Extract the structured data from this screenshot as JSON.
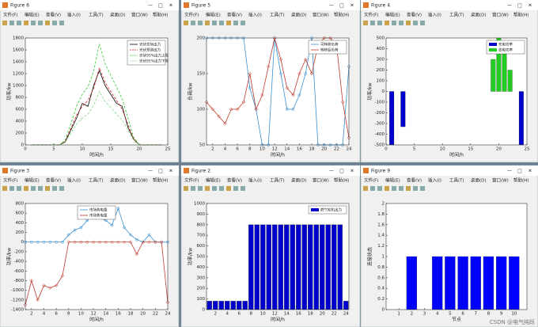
{
  "windows": [
    {
      "title": "Figure 6"
    },
    {
      "title": "Figure 5"
    },
    {
      "title": "Figure 4"
    },
    {
      "title": "Figure 3"
    },
    {
      "title": "Figure 2"
    },
    {
      "title": "Figure 9"
    }
  ],
  "menu": [
    "文件(F)",
    "编辑(E)",
    "查看(V)",
    "插入(I)",
    "工具(T)",
    "桌面(D)",
    "窗口(W)",
    "帮助(H)"
  ],
  "watermark": "CSDN @电气纯跃",
  "chart_data": [
    {
      "type": "line",
      "xlabel": "时间/h",
      "ylabel": "功率/kw",
      "xlim": [
        0,
        25
      ],
      "xticks": [
        0,
        5,
        10,
        15,
        20,
        25
      ],
      "ylim": [
        0,
        1800
      ],
      "yticks": [
        0,
        200,
        400,
        600,
        800,
        1000,
        1200,
        1400,
        1600,
        1800
      ],
      "legend": "top-right",
      "x": [
        1,
        2,
        3,
        4,
        5,
        6,
        7,
        8,
        9,
        10,
        11,
        12,
        13,
        14,
        15,
        16,
        17,
        18,
        19,
        20,
        21,
        22,
        23,
        24
      ],
      "series": [
        {
          "name": "光伏实际出力",
          "color": "#000000",
          "line_style": "solid",
          "values": [
            0,
            0,
            0,
            0,
            0,
            0,
            50,
            250,
            450,
            700,
            650,
            1000,
            1250,
            1000,
            850,
            700,
            650,
            300,
            100,
            0,
            0,
            0,
            0,
            0
          ]
        },
        {
          "name": "光伏预测出力",
          "color": "#d62020",
          "line_style": "dashed",
          "values": [
            0,
            0,
            0,
            0,
            0,
            0,
            60,
            280,
            500,
            650,
            750,
            950,
            1300,
            1050,
            900,
            750,
            600,
            350,
            100,
            0,
            0,
            0,
            0,
            0
          ]
        },
        {
          "name": "光伏95%出力上限",
          "color": "#2ecc2e",
          "line_style": "dashed",
          "values": [
            0,
            0,
            0,
            0,
            0,
            0,
            80,
            360,
            650,
            850,
            980,
            1240,
            1700,
            1370,
            1170,
            980,
            780,
            460,
            130,
            0,
            0,
            0,
            0,
            0
          ]
        },
        {
          "name": "光伏95%出力下限",
          "color": "#7fd67f",
          "line_style": "dashed",
          "values": [
            0,
            0,
            0,
            0,
            0,
            0,
            40,
            200,
            350,
            450,
            520,
            660,
            900,
            730,
            630,
            520,
            420,
            250,
            70,
            0,
            0,
            0,
            0,
            0
          ]
        }
      ]
    },
    {
      "type": "line",
      "xlabel": "时间/h",
      "ylabel": "负荷/kw",
      "xlim": [
        1,
        24
      ],
      "xticks": [
        2,
        4,
        6,
        8,
        10,
        12,
        14,
        16,
        18,
        20,
        22,
        24
      ],
      "ylim": [
        50,
        200
      ],
      "yticks": [
        50,
        100,
        150,
        200
      ],
      "legend": "top-right",
      "x": [
        1,
        2,
        3,
        4,
        5,
        6,
        7,
        8,
        9,
        10,
        11,
        12,
        13,
        14,
        15,
        16,
        17,
        18,
        19,
        20,
        21,
        22,
        23,
        24
      ],
      "series": [
        {
          "name": "可转移负荷",
          "color": "#3a8fd0",
          "marker": "circle",
          "values": [
            200,
            200,
            200,
            200,
            200,
            200,
            200,
            130,
            100,
            50,
            50,
            200,
            150,
            100,
            100,
            120,
            150,
            200,
            50,
            50,
            50,
            50,
            50,
            160
          ]
        },
        {
          "name": "转移后负荷",
          "color": "#c0392b",
          "marker": "diamond",
          "values": [
            110,
            100,
            90,
            80,
            100,
            100,
            110,
            150,
            100,
            120,
            160,
            200,
            170,
            130,
            120,
            150,
            170,
            150,
            190,
            200,
            200,
            190,
            110,
            60
          ]
        }
      ]
    },
    {
      "type": "bar",
      "xlabel": "时间/h",
      "ylabel": "功率/kw",
      "xlim": [
        0,
        25
      ],
      "xticks": [
        0,
        5,
        10,
        15,
        20,
        25
      ],
      "ylim": [
        -500,
        500
      ],
      "yticks": [
        -500,
        -400,
        -300,
        -200,
        -100,
        0,
        100,
        200,
        300,
        400,
        500
      ],
      "legend": "top-right",
      "x": [
        1,
        2,
        3,
        4,
        5,
        6,
        7,
        8,
        9,
        10,
        11,
        12,
        13,
        14,
        15,
        16,
        17,
        18,
        19,
        20,
        21,
        22,
        23,
        24
      ],
      "series": [
        {
          "name": "充电功率",
          "color": "#0000cc",
          "values": [
            -500,
            0,
            -330,
            0,
            0,
            0,
            0,
            0,
            0,
            0,
            0,
            0,
            0,
            0,
            0,
            0,
            0,
            0,
            0,
            0,
            0,
            0,
            0,
            -500
          ]
        },
        {
          "name": "放电功率",
          "color": "#22cc22",
          "values": [
            0,
            0,
            0,
            0,
            0,
            0,
            0,
            0,
            0,
            0,
            0,
            0,
            0,
            0,
            0,
            0,
            0,
            0,
            300,
            500,
            420,
            200,
            0,
            0
          ]
        }
      ]
    },
    {
      "type": "line",
      "xlabel": "时间/h",
      "ylabel": "功率/kw",
      "xlim": [
        1,
        24
      ],
      "xticks": [
        2,
        4,
        6,
        8,
        10,
        12,
        14,
        16,
        18,
        20,
        22,
        24
      ],
      "ylim": [
        -1400,
        800
      ],
      "yticks": [
        -1400,
        -1200,
        -1000,
        -800,
        -600,
        -400,
        -200,
        0,
        200,
        400,
        600,
        800
      ],
      "legend": "top-center",
      "x": [
        1,
        2,
        3,
        4,
        5,
        6,
        7,
        8,
        9,
        10,
        11,
        12,
        13,
        14,
        15,
        16,
        17,
        18,
        19,
        20,
        21,
        22,
        23,
        24
      ],
      "series": [
        {
          "name": "市场购电量",
          "color": "#3a8fd0",
          "marker": "circle",
          "values": [
            0,
            0,
            0,
            0,
            0,
            0,
            0,
            150,
            250,
            300,
            450,
            600,
            500,
            450,
            350,
            700,
            300,
            150,
            50,
            0,
            150,
            0,
            0,
            0
          ]
        },
        {
          "name": "市场售电量",
          "color": "#c0392b",
          "marker": "diamond",
          "values": [
            -1300,
            -800,
            -1200,
            -900,
            -950,
            -900,
            -700,
            0,
            0,
            0,
            0,
            0,
            0,
            0,
            0,
            0,
            0,
            0,
            -250,
            0,
            0,
            0,
            0,
            -1250
          ]
        }
      ]
    },
    {
      "type": "bar",
      "xlabel": "时间/h",
      "ylabel": "功率/kw",
      "xlim": [
        0.5,
        24.5
      ],
      "xticks": [
        2,
        4,
        6,
        8,
        10,
        12,
        14,
        16,
        18,
        20,
        22,
        24
      ],
      "ylim": [
        0,
        1000
      ],
      "yticks": [
        0,
        100,
        200,
        300,
        400,
        500,
        600,
        700,
        800,
        900,
        1000
      ],
      "legend": "top-right",
      "x": [
        1,
        2,
        3,
        4,
        5,
        6,
        7,
        8,
        9,
        10,
        11,
        12,
        13,
        14,
        15,
        16,
        17,
        18,
        19,
        20,
        21,
        22,
        23,
        24
      ],
      "series": [
        {
          "name": "燃气轮机出力",
          "color": "#0000cc",
          "values": [
            80,
            80,
            80,
            80,
            80,
            80,
            80,
            800,
            800,
            800,
            800,
            800,
            800,
            800,
            800,
            800,
            800,
            800,
            800,
            800,
            800,
            800,
            800,
            80
          ]
        }
      ]
    },
    {
      "type": "bar",
      "xlabel": "节点",
      "ylabel": "连接状态",
      "xlim": [
        0,
        11
      ],
      "xticks": [
        1,
        2,
        3,
        4,
        5,
        6,
        7,
        8,
        9,
        10
      ],
      "ylim": [
        0,
        2
      ],
      "yticks": [
        0,
        0.2,
        0.4,
        0.6,
        0.8,
        1,
        1.2,
        1.4,
        1.6,
        1.8,
        2
      ],
      "x": [
        1,
        2,
        3,
        4,
        5,
        6,
        7,
        8,
        9,
        10
      ],
      "color": "#0000ff",
      "values": [
        0,
        1,
        0,
        1,
        1,
        1,
        1,
        1,
        1,
        1
      ]
    }
  ]
}
